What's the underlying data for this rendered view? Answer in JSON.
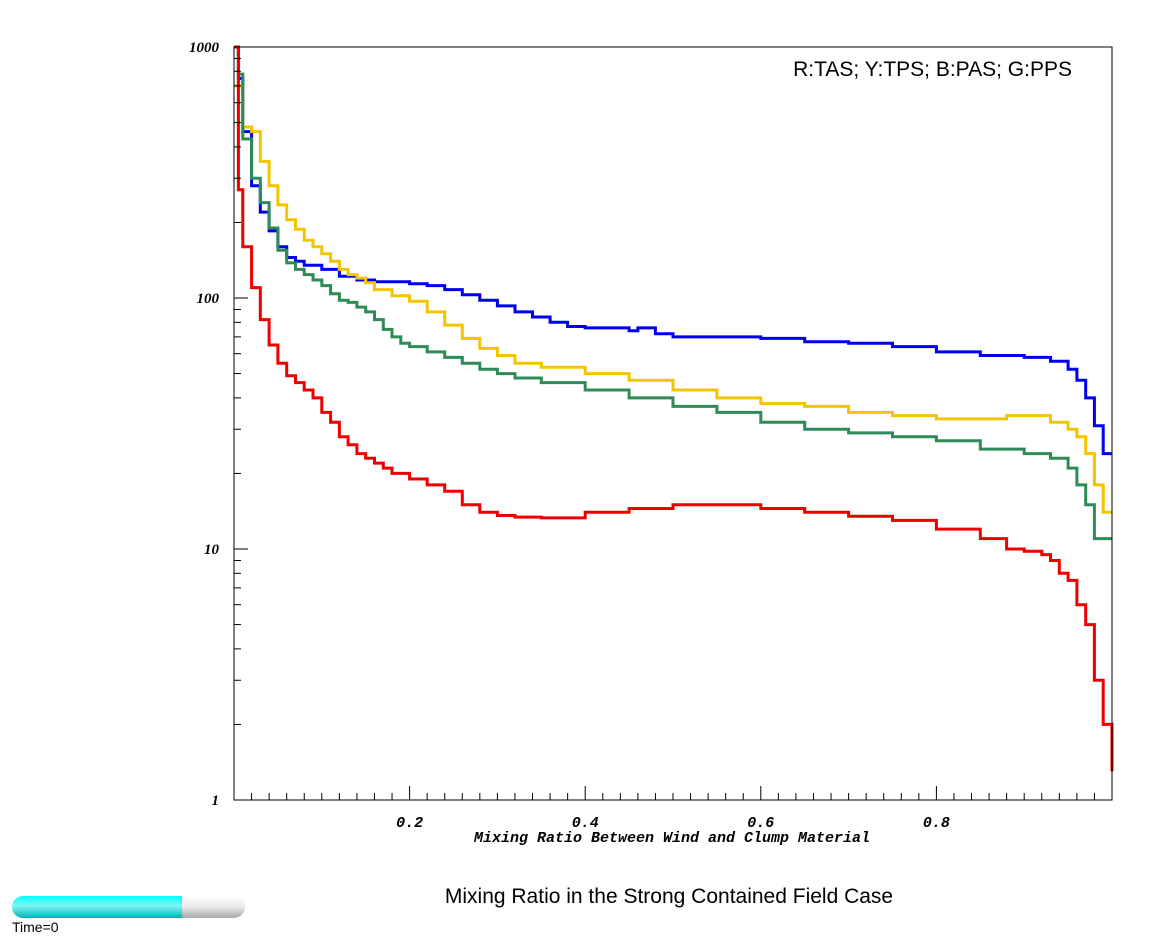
{
  "chart_data": {
    "type": "line",
    "step": true,
    "title": "Mixing Ratio in the Strong Contained Field Case",
    "xlabel": "Mixing Ratio Between Wind and Clump Material",
    "ylabel": "",
    "legend_text": "R:TAS; Y:TPS; B:PAS; G:PPS",
    "legend_position": "top-right",
    "xlim": [
      0.0,
      1.0
    ],
    "ylim": [
      1,
      1000
    ],
    "yscale": "log",
    "grid": false,
    "x_ticks": [
      0.2,
      0.4,
      0.6,
      0.8
    ],
    "x_tick_labels": [
      "0.2",
      "0.4",
      "0.6",
      "0.8"
    ],
    "y_ticks": [
      1,
      10,
      100,
      1000
    ],
    "y_tick_labels": [
      "1",
      "10",
      "100",
      "1000"
    ],
    "series": [
      {
        "color": "#0000ee",
        "x": [
          0.0,
          0.005,
          0.01,
          0.02,
          0.03,
          0.04,
          0.05,
          0.06,
          0.07,
          0.08,
          0.1,
          0.12,
          0.14,
          0.16,
          0.2,
          0.22,
          0.24,
          0.26,
          0.28,
          0.3,
          0.32,
          0.34,
          0.36,
          0.38,
          0.4,
          0.45,
          0.46,
          0.48,
          0.5,
          0.55,
          0.6,
          0.65,
          0.7,
          0.75,
          0.8,
          0.85,
          0.9,
          0.93,
          0.95,
          0.96,
          0.97,
          0.98,
          0.99,
          1.0
        ],
        "y": [
          1000,
          750,
          460,
          280,
          220,
          185,
          160,
          145,
          140,
          135,
          130,
          122,
          118,
          116,
          114,
          112,
          108,
          103,
          98,
          93,
          88,
          84,
          80,
          77,
          76,
          74,
          76,
          72,
          70,
          70,
          69,
          67,
          66,
          64,
          61,
          59,
          58,
          56,
          52,
          47,
          40,
          31,
          24,
          24
        ]
      },
      {
        "color": "#f2c500",
        "x": [
          0.0,
          0.005,
          0.01,
          0.02,
          0.03,
          0.04,
          0.05,
          0.06,
          0.07,
          0.08,
          0.09,
          0.1,
          0.11,
          0.12,
          0.13,
          0.14,
          0.15,
          0.16,
          0.18,
          0.2,
          0.22,
          0.24,
          0.26,
          0.28,
          0.3,
          0.32,
          0.35,
          0.4,
          0.45,
          0.5,
          0.55,
          0.6,
          0.65,
          0.7,
          0.75,
          0.8,
          0.85,
          0.88,
          0.9,
          0.93,
          0.95,
          0.96,
          0.97,
          0.98,
          0.99,
          1.0
        ],
        "y": [
          700,
          700,
          480,
          460,
          350,
          280,
          235,
          205,
          188,
          170,
          160,
          150,
          140,
          130,
          124,
          120,
          115,
          108,
          102,
          97,
          88,
          78,
          69,
          63,
          59,
          55,
          53,
          50,
          47,
          43,
          40,
          38,
          37,
          35,
          34,
          33,
          33,
          34,
          34,
          32,
          30,
          28,
          24,
          18,
          14,
          14
        ]
      },
      {
        "color": "#2e8b57",
        "x": [
          0.0,
          0.005,
          0.01,
          0.02,
          0.03,
          0.04,
          0.05,
          0.06,
          0.07,
          0.08,
          0.09,
          0.1,
          0.11,
          0.12,
          0.13,
          0.14,
          0.15,
          0.16,
          0.17,
          0.18,
          0.19,
          0.2,
          0.22,
          0.24,
          0.26,
          0.28,
          0.3,
          0.32,
          0.35,
          0.4,
          0.45,
          0.5,
          0.55,
          0.6,
          0.65,
          0.7,
          0.75,
          0.8,
          0.85,
          0.9,
          0.93,
          0.95,
          0.96,
          0.97,
          0.98,
          0.99,
          1.0
        ],
        "y": [
          1000,
          780,
          430,
          300,
          240,
          190,
          155,
          138,
          130,
          124,
          118,
          112,
          104,
          98,
          96,
          92,
          88,
          82,
          75,
          70,
          66,
          64,
          61,
          58,
          55,
          52,
          50,
          48,
          46,
          43,
          40,
          37,
          35,
          32,
          30,
          29,
          28,
          27,
          25,
          24,
          23,
          21,
          18,
          15,
          11,
          11,
          11
        ]
      },
      {
        "color": "#ee0000",
        "x": [
          0.0,
          0.005,
          0.01,
          0.02,
          0.03,
          0.04,
          0.05,
          0.06,
          0.07,
          0.08,
          0.09,
          0.1,
          0.11,
          0.12,
          0.13,
          0.14,
          0.15,
          0.16,
          0.17,
          0.18,
          0.19,
          0.2,
          0.22,
          0.24,
          0.26,
          0.28,
          0.3,
          0.32,
          0.35,
          0.4,
          0.45,
          0.5,
          0.55,
          0.6,
          0.65,
          0.7,
          0.75,
          0.8,
          0.85,
          0.88,
          0.9,
          0.92,
          0.93,
          0.94,
          0.95,
          0.96,
          0.97,
          0.98,
          0.99,
          1.0
        ],
        "y": [
          1000,
          270,
          160,
          110,
          82,
          65,
          55,
          49,
          46,
          43,
          40,
          35,
          32,
          28,
          26,
          24,
          23,
          22,
          21,
          20,
          20,
          19,
          18,
          17,
          15,
          14,
          13.6,
          13.4,
          13.3,
          14,
          14.5,
          15,
          15,
          14.5,
          14,
          13.5,
          13,
          12,
          11,
          10,
          9.8,
          9.5,
          9,
          8,
          7.5,
          6,
          5,
          3,
          2,
          1.3
        ]
      }
    ]
  },
  "time_slider": {
    "label": "Time=0",
    "progress": 0.73,
    "fill_color": "#00e5ee",
    "track_color": "#e0e0e0"
  }
}
